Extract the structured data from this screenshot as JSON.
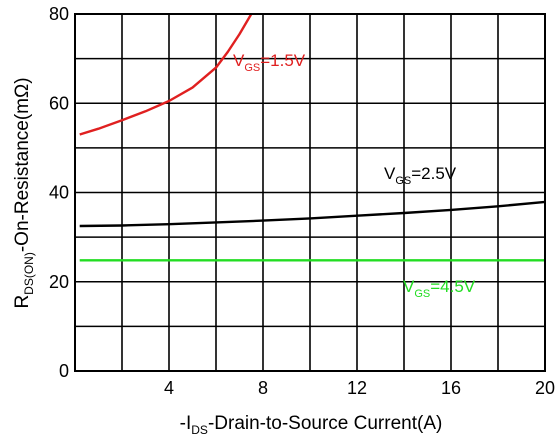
{
  "chart_data": {
    "type": "line",
    "title": "",
    "xlabel": {
      "pre": "-I",
      "sub": "DS",
      "post": "-Drain-to-Source Current(A)"
    },
    "ylabel": {
      "pre": "R",
      "sub": "DS(ON)",
      "post": "-On-Resistance(mΩ)"
    },
    "xlim": [
      0,
      20
    ],
    "ylim": [
      0,
      80
    ],
    "x_ticks": [
      4,
      8,
      12,
      16,
      20
    ],
    "x_tick_labels": [
      "4",
      "8",
      "12",
      "16",
      "20"
    ],
    "y_ticks": [
      0,
      20,
      40,
      60,
      80
    ],
    "y_tick_labels": [
      "0",
      "20",
      "40",
      "60",
      "80"
    ],
    "grid": true,
    "x_grid_step": 2,
    "y_grid_step": 10,
    "series": [
      {
        "label": {
          "pre": "V",
          "sub": "GS",
          "post": "=1.5V"
        },
        "color": "#e02020",
        "x": [
          0.2,
          1,
          2,
          3,
          4,
          5,
          6,
          6.5,
          7,
          7.5
        ],
        "y": [
          53,
          54.3,
          56.2,
          58.2,
          60.5,
          63.5,
          68,
          71.5,
          75.5,
          80
        ]
      },
      {
        "label": {
          "pre": "V",
          "sub": "GS",
          "post": "=2.5V"
        },
        "color": "#000000",
        "x": [
          0.2,
          2,
          4,
          6,
          8,
          10,
          12,
          14,
          16,
          18,
          20
        ],
        "y": [
          32.5,
          32.6,
          32.9,
          33.3,
          33.7,
          34.2,
          34.8,
          35.4,
          36.1,
          36.9,
          37.9
        ]
      },
      {
        "label": {
          "pre": "V",
          "sub": "GS",
          "post": "=4.5V"
        },
        "color": "#22dd22",
        "x": [
          0.2,
          20
        ],
        "y": [
          24.8,
          24.8
        ]
      }
    ]
  }
}
